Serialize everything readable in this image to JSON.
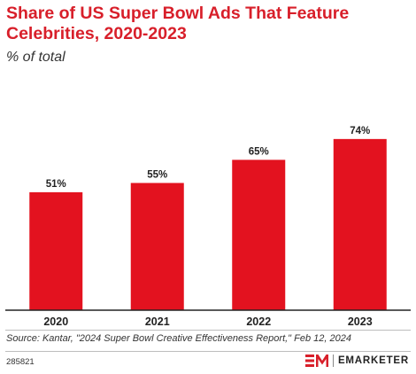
{
  "header": {
    "title": "Share of US Super Bowl Ads That Feature Celebrities, 2020-2023",
    "subtitle": "% of total"
  },
  "chart_data": {
    "type": "bar",
    "categories": [
      "2020",
      "2021",
      "2022",
      "2023"
    ],
    "values": [
      51,
      55,
      65,
      74
    ],
    "value_labels": [
      "51%",
      "55%",
      "65%",
      "74%"
    ],
    "ylim": [
      0,
      100
    ],
    "grid": false,
    "bar_color": "#e3121f"
  },
  "footer": {
    "source": "Source: Kantar, \"2024 Super Bowl Creative Effectiveness Report,\" Feb 12, 2024",
    "chart_id": "285821",
    "brand": "EMARKETER"
  },
  "colors": {
    "accent": "#d81f2a"
  }
}
